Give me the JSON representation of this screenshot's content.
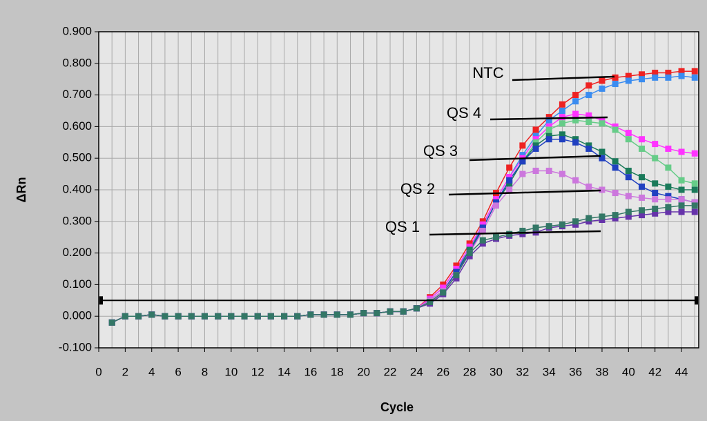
{
  "chart_data": {
    "type": "line",
    "xlabel": "Cycle",
    "ylabel": "ΔRn",
    "x": [
      1,
      2,
      3,
      4,
      5,
      6,
      7,
      8,
      9,
      10,
      11,
      12,
      13,
      14,
      15,
      16,
      17,
      18,
      19,
      20,
      21,
      22,
      23,
      24,
      25,
      26,
      27,
      28,
      29,
      30,
      31,
      32,
      33,
      34,
      35,
      36,
      37,
      38,
      39,
      40,
      41,
      42,
      43,
      44,
      45
    ],
    "series": [
      {
        "color": "#ee2222",
        "values": [
          -0.02,
          0.0,
          0.0,
          0.005,
          0.0,
          0.0,
          0.0,
          0.0,
          0.0,
          0.0,
          0.0,
          0.0,
          0.0,
          0.0,
          0.0,
          0.005,
          0.005,
          0.005,
          0.005,
          0.01,
          0.01,
          0.015,
          0.015,
          0.025,
          0.06,
          0.1,
          0.16,
          0.23,
          0.3,
          0.39,
          0.47,
          0.54,
          0.59,
          0.63,
          0.67,
          0.7,
          0.73,
          0.745,
          0.755,
          0.76,
          0.765,
          0.77,
          0.77,
          0.775,
          0.775
        ]
      },
      {
        "color": "#3a8cf0",
        "values": [
          -0.02,
          0.0,
          0.0,
          0.005,
          0.0,
          0.0,
          0.0,
          0.0,
          0.0,
          0.0,
          0.0,
          0.0,
          0.0,
          0.0,
          0.0,
          0.005,
          0.005,
          0.005,
          0.005,
          0.01,
          0.01,
          0.015,
          0.015,
          0.025,
          0.055,
          0.09,
          0.15,
          0.21,
          0.29,
          0.37,
          0.44,
          0.51,
          0.57,
          0.62,
          0.65,
          0.68,
          0.7,
          0.72,
          0.735,
          0.745,
          0.75,
          0.755,
          0.755,
          0.76,
          0.755
        ]
      },
      {
        "color": "#ff33ff",
        "values": [
          -0.02,
          0.0,
          0.0,
          0.005,
          0.0,
          0.0,
          0.0,
          0.0,
          0.0,
          0.0,
          0.0,
          0.0,
          0.0,
          0.0,
          0.0,
          0.005,
          0.005,
          0.005,
          0.005,
          0.01,
          0.01,
          0.015,
          0.015,
          0.025,
          0.055,
          0.09,
          0.15,
          0.22,
          0.29,
          0.37,
          0.44,
          0.5,
          0.56,
          0.6,
          0.63,
          0.64,
          0.635,
          0.62,
          0.6,
          0.58,
          0.56,
          0.545,
          0.53,
          0.52,
          0.515
        ]
      },
      {
        "color": "#66cc88",
        "values": [
          -0.02,
          0.0,
          0.0,
          0.005,
          0.0,
          0.0,
          0.0,
          0.0,
          0.0,
          0.0,
          0.0,
          0.0,
          0.0,
          0.0,
          0.0,
          0.005,
          0.005,
          0.005,
          0.005,
          0.01,
          0.01,
          0.015,
          0.015,
          0.025,
          0.05,
          0.08,
          0.14,
          0.2,
          0.28,
          0.36,
          0.43,
          0.49,
          0.55,
          0.59,
          0.61,
          0.62,
          0.615,
          0.61,
          0.59,
          0.56,
          0.53,
          0.5,
          0.47,
          0.43,
          0.42
        ]
      },
      {
        "color": "#1a7a5a",
        "values": [
          -0.02,
          0.0,
          0.0,
          0.005,
          0.0,
          0.0,
          0.0,
          0.0,
          0.0,
          0.0,
          0.0,
          0.0,
          0.0,
          0.0,
          0.0,
          0.005,
          0.005,
          0.005,
          0.005,
          0.01,
          0.01,
          0.015,
          0.015,
          0.025,
          0.05,
          0.08,
          0.14,
          0.21,
          0.28,
          0.36,
          0.42,
          0.49,
          0.54,
          0.57,
          0.575,
          0.56,
          0.54,
          0.52,
          0.49,
          0.46,
          0.44,
          0.42,
          0.41,
          0.4,
          0.4
        ]
      },
      {
        "color": "#2040c0",
        "values": [
          -0.02,
          0.0,
          0.0,
          0.005,
          0.0,
          0.0,
          0.0,
          0.0,
          0.0,
          0.0,
          0.0,
          0.0,
          0.0,
          0.0,
          0.0,
          0.005,
          0.005,
          0.005,
          0.005,
          0.01,
          0.01,
          0.015,
          0.015,
          0.025,
          0.05,
          0.08,
          0.14,
          0.2,
          0.28,
          0.36,
          0.43,
          0.49,
          0.53,
          0.56,
          0.56,
          0.55,
          0.53,
          0.5,
          0.47,
          0.44,
          0.41,
          0.39,
          0.38,
          0.37,
          0.36
        ]
      },
      {
        "color": "#cc77dd",
        "values": [
          -0.02,
          0.0,
          0.0,
          0.005,
          0.0,
          0.0,
          0.0,
          0.0,
          0.0,
          0.0,
          0.0,
          0.0,
          0.0,
          0.0,
          0.0,
          0.005,
          0.005,
          0.005,
          0.005,
          0.01,
          0.01,
          0.015,
          0.015,
          0.025,
          0.05,
          0.08,
          0.13,
          0.2,
          0.27,
          0.35,
          0.4,
          0.45,
          0.46,
          0.46,
          0.45,
          0.43,
          0.41,
          0.4,
          0.39,
          0.38,
          0.375,
          0.37,
          0.37,
          0.37,
          0.36
        ]
      },
      {
        "color": "#6633aa",
        "values": [
          -0.02,
          0.0,
          0.0,
          0.005,
          0.0,
          0.0,
          0.0,
          0.0,
          0.0,
          0.0,
          0.0,
          0.0,
          0.0,
          0.0,
          0.0,
          0.005,
          0.005,
          0.005,
          0.005,
          0.01,
          0.01,
          0.015,
          0.015,
          0.025,
          0.04,
          0.07,
          0.12,
          0.19,
          0.23,
          0.245,
          0.255,
          0.26,
          0.265,
          0.28,
          0.285,
          0.29,
          0.3,
          0.305,
          0.31,
          0.315,
          0.32,
          0.325,
          0.33,
          0.33,
          0.33
        ]
      },
      {
        "color": "#337766",
        "values": [
          -0.02,
          0.0,
          0.0,
          0.005,
          0.0,
          0.0,
          0.0,
          0.0,
          0.0,
          0.0,
          0.0,
          0.0,
          0.0,
          0.0,
          0.0,
          0.005,
          0.005,
          0.005,
          0.005,
          0.01,
          0.01,
          0.015,
          0.015,
          0.025,
          0.045,
          0.075,
          0.13,
          0.2,
          0.24,
          0.25,
          0.26,
          0.27,
          0.28,
          0.285,
          0.29,
          0.3,
          0.31,
          0.315,
          0.32,
          0.33,
          0.335,
          0.34,
          0.345,
          0.35,
          0.35
        ]
      }
    ],
    "threshold": 0.05,
    "annotations": [
      {
        "text": "NTC"
      },
      {
        "text": "QS 4"
      },
      {
        "text": "QS 3"
      },
      {
        "text": "QS 2"
      },
      {
        "text": "QS 1"
      }
    ],
    "xlim": [
      0,
      45.3
    ],
    "xticks": [
      0,
      2,
      4,
      6,
      8,
      10,
      12,
      14,
      16,
      18,
      20,
      22,
      24,
      26,
      28,
      30,
      32,
      34,
      36,
      38,
      40,
      42,
      44
    ],
    "ylim": [
      -0.1,
      0.9
    ],
    "yticks": [
      {
        "value": -0.1,
        "label": "-0.100"
      },
      {
        "value": 0,
        "label": "0.000"
      },
      {
        "value": 0.1,
        "label": "0.100"
      },
      {
        "value": 0.2,
        "label": "0.200"
      },
      {
        "value": 0.3,
        "label": "0.300"
      },
      {
        "value": 0.4,
        "label": "0.400"
      },
      {
        "value": 0.5,
        "label": "0.500"
      },
      {
        "value": 0.6,
        "label": "0.600"
      },
      {
        "value": 0.7,
        "label": "0.700"
      },
      {
        "value": 0.8,
        "label": "0.800"
      },
      {
        "value": 0.9,
        "label": "0.900"
      }
    ],
    "grid": true
  }
}
